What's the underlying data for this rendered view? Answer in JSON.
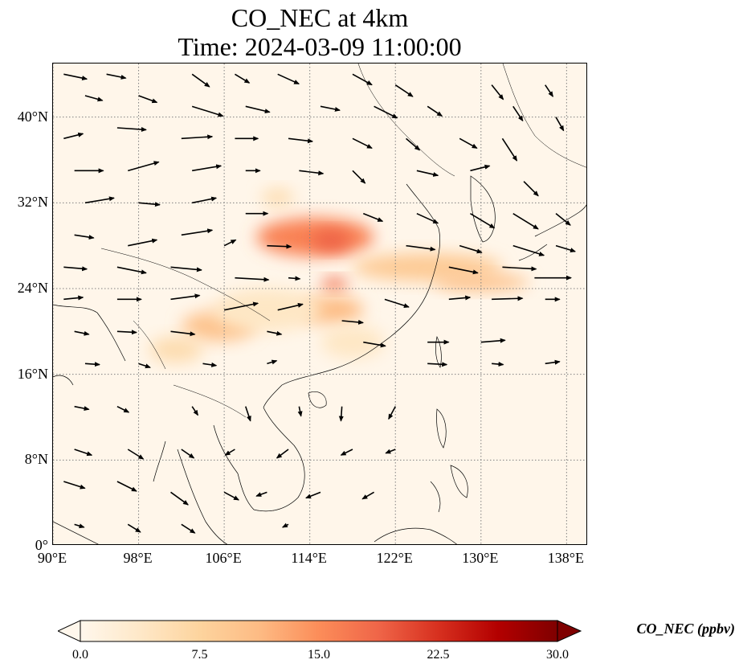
{
  "title": {
    "line1": "CO_NEC at 4km",
    "line2": "Time: 2024-03-09 11:00:00"
  },
  "map": {
    "extent": {
      "lon_min": 90,
      "lon_max": 140,
      "lat_min": 0,
      "lat_max": 45
    },
    "gridlines": "dotted gray",
    "lat_ticks": [
      {
        "value": 40,
        "label": "40°N"
      },
      {
        "value": 32,
        "label": "32°N"
      },
      {
        "value": 24,
        "label": "24°N"
      },
      {
        "value": 16,
        "label": "16°N"
      },
      {
        "value": 8,
        "label": "8°N"
      },
      {
        "value": 0,
        "label": "0°"
      }
    ],
    "lon_ticks": [
      {
        "value": 90,
        "label": "90°E"
      },
      {
        "value": 98,
        "label": "98°E"
      },
      {
        "value": 106,
        "label": "106°E"
      },
      {
        "value": 114,
        "label": "114°E"
      },
      {
        "value": 122,
        "label": "122°E"
      },
      {
        "value": 130,
        "label": "130°E"
      },
      {
        "value": 138,
        "label": "138°E"
      }
    ],
    "background_color": "#fff6ea",
    "concentration_plumes": [
      {
        "lon": 114.5,
        "lat": 28.8,
        "rlon": 5.5,
        "rlat": 1.8,
        "value": 16
      },
      {
        "lon": 116.0,
        "lat": 28.5,
        "rlon": 1.8,
        "rlat": 0.9,
        "value": 19
      },
      {
        "lon": 125.0,
        "lat": 26.0,
        "rlon": 7.0,
        "rlat": 1.3,
        "value": 9
      },
      {
        "lon": 130.0,
        "lat": 24.6,
        "rlon": 4.5,
        "rlat": 0.8,
        "value": 10
      },
      {
        "lon": 116.3,
        "lat": 24.4,
        "rlon": 1.2,
        "rlat": 0.6,
        "value": 18
      },
      {
        "lon": 116.0,
        "lat": 22.0,
        "rlon": 3.0,
        "rlat": 1.3,
        "value": 11
      },
      {
        "lon": 105.5,
        "lat": 20.5,
        "rlon": 3.5,
        "rlat": 1.4,
        "value": 10
      },
      {
        "lon": 101.5,
        "lat": 18.3,
        "rlon": 2.5,
        "rlat": 1.2,
        "value": 6
      },
      {
        "lon": 111.0,
        "lat": 32.5,
        "rlon": 1.5,
        "rlat": 0.8,
        "value": 6
      },
      {
        "lon": 110.0,
        "lat": 22.0,
        "rlon": 5.0,
        "rlat": 2.0,
        "value": 4
      },
      {
        "lon": 118.0,
        "lat": 19.0,
        "rlon": 3.0,
        "rlat": 1.5,
        "value": 4
      }
    ]
  },
  "wind": {
    "description": "wind vectors (quiver arrows)",
    "arrow_color": "#000000",
    "vectors": [
      {
        "lon": 91,
        "lat": 44,
        "u": 2.4,
        "v": -0.5
      },
      {
        "lon": 95,
        "lat": 44,
        "u": 2.0,
        "v": -0.4
      },
      {
        "lon": 103,
        "lat": 44,
        "u": 1.8,
        "v": -1.3
      },
      {
        "lon": 107,
        "lat": 44,
        "u": 1.5,
        "v": -0.9
      },
      {
        "lon": 111,
        "lat": 44,
        "u": 2.2,
        "v": -1.0
      },
      {
        "lon": 118,
        "lat": 44,
        "u": 2.0,
        "v": -1.1
      },
      {
        "lon": 122,
        "lat": 43,
        "u": 1.8,
        "v": -1.2
      },
      {
        "lon": 131,
        "lat": 43,
        "u": 1.2,
        "v": -1.5
      },
      {
        "lon": 136,
        "lat": 43,
        "u": 0.8,
        "v": -1.2
      },
      {
        "lon": 93,
        "lat": 42,
        "u": 1.8,
        "v": -0.5
      },
      {
        "lon": 98,
        "lat": 42,
        "u": 1.9,
        "v": -0.7
      },
      {
        "lon": 103,
        "lat": 41,
        "u": 3.2,
        "v": -1.0
      },
      {
        "lon": 108,
        "lat": 41,
        "u": 2.5,
        "v": -0.6
      },
      {
        "lon": 115,
        "lat": 41,
        "u": 2.0,
        "v": -0.4
      },
      {
        "lon": 120,
        "lat": 41,
        "u": 2.4,
        "v": -1.2
      },
      {
        "lon": 125,
        "lat": 41,
        "u": 1.5,
        "v": -1.0
      },
      {
        "lon": 133,
        "lat": 41,
        "u": 1.0,
        "v": -1.5
      },
      {
        "lon": 137,
        "lat": 40,
        "u": 0.8,
        "v": -1.4
      },
      {
        "lon": 91,
        "lat": 38,
        "u": 2.0,
        "v": 0.5
      },
      {
        "lon": 96,
        "lat": 39,
        "u": 3.0,
        "v": -0.2
      },
      {
        "lon": 102,
        "lat": 38,
        "u": 3.2,
        "v": 0.2
      },
      {
        "lon": 107,
        "lat": 38,
        "u": 2.4,
        "v": 0.0
      },
      {
        "lon": 112,
        "lat": 38,
        "u": 2.5,
        "v": -0.3
      },
      {
        "lon": 118,
        "lat": 38,
        "u": 2.0,
        "v": -1.0
      },
      {
        "lon": 123,
        "lat": 38,
        "u": 1.4,
        "v": -1.2
      },
      {
        "lon": 128,
        "lat": 38,
        "u": 1.8,
        "v": -1.0
      },
      {
        "lon": 132,
        "lat": 38,
        "u": 1.5,
        "v": -2.3
      },
      {
        "lon": 92,
        "lat": 35,
        "u": 3.0,
        "v": 0.0
      },
      {
        "lon": 97,
        "lat": 35,
        "u": 3.2,
        "v": 0.9
      },
      {
        "lon": 103,
        "lat": 35,
        "u": 3.0,
        "v": 0.5
      },
      {
        "lon": 108,
        "lat": 35,
        "u": 1.5,
        "v": 0.0
      },
      {
        "lon": 113,
        "lat": 35,
        "u": 2.5,
        "v": -0.3
      },
      {
        "lon": 118,
        "lat": 35,
        "u": 1.3,
        "v": -1.3
      },
      {
        "lon": 124,
        "lat": 35,
        "u": 2.2,
        "v": -0.5
      },
      {
        "lon": 129,
        "lat": 35,
        "u": 2.0,
        "v": 0.5
      },
      {
        "lon": 134,
        "lat": 34,
        "u": 1.5,
        "v": -1.5
      },
      {
        "lon": 93,
        "lat": 32,
        "u": 3.0,
        "v": 0.5
      },
      {
        "lon": 98,
        "lat": 32,
        "u": 2.2,
        "v": -0.2
      },
      {
        "lon": 103,
        "lat": 32,
        "u": 2.5,
        "v": 0.5
      },
      {
        "lon": 108,
        "lat": 31,
        "u": 2.3,
        "v": 0.0
      },
      {
        "lon": 119,
        "lat": 31,
        "u": 2.0,
        "v": -0.8
      },
      {
        "lon": 124,
        "lat": 31,
        "u": 2.2,
        "v": -1.0
      },
      {
        "lon": 129,
        "lat": 31,
        "u": 2.5,
        "v": -1.5
      },
      {
        "lon": 133,
        "lat": 31,
        "u": 2.6,
        "v": -1.6
      },
      {
        "lon": 137,
        "lat": 31,
        "u": 1.5,
        "v": -1.2
      },
      {
        "lon": 92,
        "lat": 29,
        "u": 2.0,
        "v": -0.3
      },
      {
        "lon": 97,
        "lat": 28,
        "u": 3.0,
        "v": 0.6
      },
      {
        "lon": 102,
        "lat": 29,
        "u": 3.2,
        "v": 0.5
      },
      {
        "lon": 106,
        "lat": 28,
        "u": 1.2,
        "v": 0.6
      },
      {
        "lon": 110,
        "lat": 28,
        "u": 2.5,
        "v": -0.1
      },
      {
        "lon": 123,
        "lat": 28,
        "u": 3.0,
        "v": -0.4
      },
      {
        "lon": 128,
        "lat": 28,
        "u": 2.3,
        "v": -0.7
      },
      {
        "lon": 133,
        "lat": 28,
        "u": 3.2,
        "v": -1.0
      },
      {
        "lon": 137,
        "lat": 28,
        "u": 2.0,
        "v": -0.6
      },
      {
        "lon": 91,
        "lat": 26,
        "u": 2.4,
        "v": -0.2
      },
      {
        "lon": 96,
        "lat": 26,
        "u": 3.0,
        "v": -0.6
      },
      {
        "lon": 101,
        "lat": 26,
        "u": 3.2,
        "v": -0.3
      },
      {
        "lon": 107,
        "lat": 25,
        "u": 3.5,
        "v": -0.2
      },
      {
        "lon": 112,
        "lat": 25,
        "u": 1.2,
        "v": -0.1
      },
      {
        "lon": 127,
        "lat": 26,
        "u": 3.0,
        "v": -0.6
      },
      {
        "lon": 132,
        "lat": 26,
        "u": 3.5,
        "v": -0.2
      },
      {
        "lon": 135,
        "lat": 25,
        "u": 3.8,
        "v": 0.0
      },
      {
        "lon": 91,
        "lat": 23,
        "u": 2.0,
        "v": 0.2
      },
      {
        "lon": 96,
        "lat": 23,
        "u": 2.5,
        "v": 0.0
      },
      {
        "lon": 101,
        "lat": 23,
        "u": 3.0,
        "v": 0.4
      },
      {
        "lon": 106,
        "lat": 22,
        "u": 3.5,
        "v": 0.7
      },
      {
        "lon": 111,
        "lat": 22,
        "u": 2.6,
        "v": 0.6
      },
      {
        "lon": 117,
        "lat": 21,
        "u": 2.2,
        "v": -0.2
      },
      {
        "lon": 121,
        "lat": 23,
        "u": 2.5,
        "v": -0.8
      },
      {
        "lon": 127,
        "lat": 23,
        "u": 2.2,
        "v": 0.2
      },
      {
        "lon": 131,
        "lat": 23,
        "u": 3.2,
        "v": 0.1
      },
      {
        "lon": 136,
        "lat": 23,
        "u": 1.5,
        "v": 0.0
      },
      {
        "lon": 92,
        "lat": 20,
        "u": 1.5,
        "v": -0.3
      },
      {
        "lon": 96,
        "lat": 20,
        "u": 2.0,
        "v": -0.1
      },
      {
        "lon": 101,
        "lat": 20,
        "u": 2.5,
        "v": -0.3
      },
      {
        "lon": 110,
        "lat": 20,
        "u": 1.5,
        "v": -0.3
      },
      {
        "lon": 119,
        "lat": 19,
        "u": 2.3,
        "v": -0.4
      },
      {
        "lon": 125,
        "lat": 19,
        "u": 2.2,
        "v": 0.0
      },
      {
        "lon": 130,
        "lat": 19,
        "u": 2.5,
        "v": 0.2
      },
      {
        "lon": 93,
        "lat": 17,
        "u": 1.5,
        "v": -0.1
      },
      {
        "lon": 98,
        "lat": 17,
        "u": 1.2,
        "v": -0.4
      },
      {
        "lon": 104,
        "lat": 17,
        "u": 1.4,
        "v": -0.2
      },
      {
        "lon": 110,
        "lat": 17,
        "u": 1.0,
        "v": 0.3
      },
      {
        "lon": 125,
        "lat": 17,
        "u": 2.0,
        "v": -0.1
      },
      {
        "lon": 131,
        "lat": 17,
        "u": 1.2,
        "v": -0.1
      },
      {
        "lon": 136,
        "lat": 17,
        "u": 1.5,
        "v": 0.2
      },
      {
        "lon": 92,
        "lat": 13,
        "u": 1.5,
        "v": -0.3
      },
      {
        "lon": 96,
        "lat": 13,
        "u": 1.2,
        "v": -0.6
      },
      {
        "lon": 103,
        "lat": 13,
        "u": 0.6,
        "v": -0.9
      },
      {
        "lon": 108,
        "lat": 13,
        "u": 0.5,
        "v": -1.5
      },
      {
        "lon": 113,
        "lat": 13,
        "u": 0.2,
        "v": -1.0
      },
      {
        "lon": 117,
        "lat": 13,
        "u": -0.1,
        "v": -1.5
      },
      {
        "lon": 122,
        "lat": 13,
        "u": -0.7,
        "v": -1.3
      },
      {
        "lon": 92,
        "lat": 9,
        "u": 1.8,
        "v": -0.6
      },
      {
        "lon": 97,
        "lat": 9,
        "u": 1.6,
        "v": -1.0
      },
      {
        "lon": 102,
        "lat": 9,
        "u": 1.3,
        "v": -0.9
      },
      {
        "lon": 107,
        "lat": 9,
        "u": -1.0,
        "v": -0.6
      },
      {
        "lon": 112,
        "lat": 9,
        "u": -1.2,
        "v": -0.9
      },
      {
        "lon": 118,
        "lat": 9,
        "u": -1.2,
        "v": -0.6
      },
      {
        "lon": 122,
        "lat": 9,
        "u": -1.0,
        "v": -0.4
      },
      {
        "lon": 91,
        "lat": 6,
        "u": 2.2,
        "v": -0.7
      },
      {
        "lon": 96,
        "lat": 6,
        "u": 2.0,
        "v": -1.0
      },
      {
        "lon": 101,
        "lat": 5,
        "u": 1.8,
        "v": -1.3
      },
      {
        "lon": 106,
        "lat": 5,
        "u": 1.5,
        "v": -0.8
      },
      {
        "lon": 110,
        "lat": 5,
        "u": -1.1,
        "v": -0.4
      },
      {
        "lon": 115,
        "lat": 5,
        "u": -1.5,
        "v": -0.6
      },
      {
        "lon": 120,
        "lat": 5,
        "u": -1.2,
        "v": -0.7
      },
      {
        "lon": 92,
        "lat": 2,
        "u": 1.0,
        "v": -0.3
      },
      {
        "lon": 97,
        "lat": 2,
        "u": 1.3,
        "v": -0.8
      },
      {
        "lon": 102,
        "lat": 2,
        "u": 1.4,
        "v": -0.9
      },
      {
        "lon": 112,
        "lat": 2,
        "u": -0.6,
        "v": -0.3
      }
    ]
  },
  "colorbar": {
    "min": 0.0,
    "max": 30.0,
    "extend": "both",
    "ticks": [
      "0.0",
      "7.5",
      "15.0",
      "22.5",
      "30.0"
    ],
    "label": "CO_NEC (ppbv)",
    "colormap": "OrRd",
    "colors": [
      "#fff7ec",
      "#fee8c8",
      "#fdd49e",
      "#fdbb84",
      "#fc8d59",
      "#ef6548",
      "#d7301f",
      "#b30000",
      "#7f0000"
    ]
  }
}
